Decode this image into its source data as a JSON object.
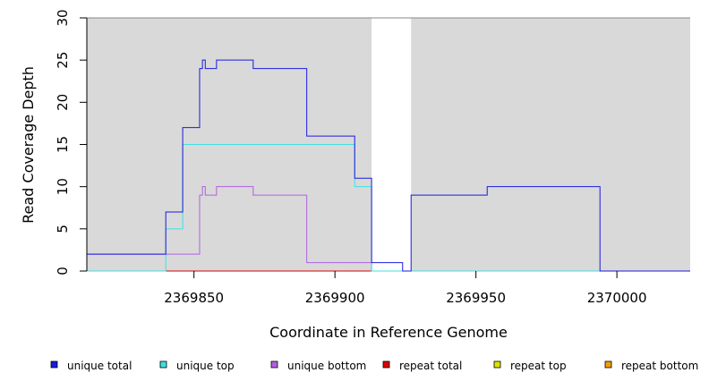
{
  "chart_data": {
    "type": "line",
    "step": true,
    "xlabel": "Coordinate in Reference Genome",
    "ylabel": "Read Coverage Depth",
    "xlim": [
      2369812,
      2370026
    ],
    "ylim": [
      0,
      30
    ],
    "x_ticks": [
      2369850,
      2369900,
      2369950,
      2370000
    ],
    "x_tick_labels": [
      "2369850",
      "2369900",
      "2369950",
      "2370000"
    ],
    "y_ticks": [
      0,
      5,
      10,
      15,
      20,
      25,
      30
    ],
    "y_tick_labels": [
      "0",
      "5",
      "10",
      "15",
      "20",
      "25",
      "30"
    ],
    "shaded_regions": [
      {
        "x0": 2369812,
        "x1": 2369913,
        "color": "#d9d9d9"
      },
      {
        "x0": 2369927,
        "x1": 2370026,
        "color": "#d9d9d9"
      }
    ],
    "legend_position": "bottom",
    "series": [
      {
        "name": "unique total",
        "color": "#1a1ae0",
        "points": [
          [
            2369812,
            2
          ],
          [
            2369840,
            2
          ],
          [
            2369840,
            7
          ],
          [
            2369846,
            7
          ],
          [
            2369846,
            17
          ],
          [
            2369852,
            17
          ],
          [
            2369852,
            24
          ],
          [
            2369853,
            24
          ],
          [
            2369853,
            25
          ],
          [
            2369854,
            25
          ],
          [
            2369854,
            24
          ],
          [
            2369858,
            24
          ],
          [
            2369858,
            25
          ],
          [
            2369871,
            25
          ],
          [
            2369871,
            24
          ],
          [
            2369890,
            24
          ],
          [
            2369890,
            16
          ],
          [
            2369907,
            16
          ],
          [
            2369907,
            11
          ],
          [
            2369913,
            11
          ],
          [
            2369913,
            1
          ],
          [
            2369924,
            1
          ],
          [
            2369924,
            0
          ],
          [
            2369927,
            0
          ],
          [
            2369927,
            9
          ],
          [
            2369954,
            9
          ],
          [
            2369954,
            10
          ],
          [
            2369994,
            10
          ],
          [
            2369994,
            0
          ],
          [
            2370026,
            0
          ]
        ]
      },
      {
        "name": "unique top",
        "color": "#40e0e0",
        "points": [
          [
            2369812,
            0
          ],
          [
            2369840,
            0
          ],
          [
            2369840,
            5
          ],
          [
            2369846,
            5
          ],
          [
            2369846,
            15
          ],
          [
            2369907,
            15
          ],
          [
            2369907,
            10
          ],
          [
            2369913,
            10
          ],
          [
            2369913,
            0
          ],
          [
            2370026,
            0
          ]
        ]
      },
      {
        "name": "unique bottom",
        "color": "#b060e0",
        "points": [
          [
            2369812,
            2
          ],
          [
            2369852,
            2
          ],
          [
            2369852,
            9
          ],
          [
            2369853,
            9
          ],
          [
            2369853,
            10
          ],
          [
            2369854,
            10
          ],
          [
            2369854,
            9
          ],
          [
            2369858,
            9
          ],
          [
            2369858,
            10
          ],
          [
            2369871,
            10
          ],
          [
            2369871,
            9
          ],
          [
            2369890,
            9
          ],
          [
            2369890,
            1
          ],
          [
            2369913,
            1
          ],
          [
            2369913,
            0
          ]
        ]
      },
      {
        "name": "repeat total",
        "color": "#e00000",
        "points": [
          [
            2369812,
            0
          ],
          [
            2369913,
            0
          ]
        ]
      },
      {
        "name": "repeat top",
        "color": "#e0e000",
        "points": [
          [
            2369812,
            0
          ],
          [
            2369913,
            0
          ]
        ]
      },
      {
        "name": "repeat bottom",
        "color": "#f0a000",
        "points": [
          [
            2369812,
            0
          ],
          [
            2369913,
            0
          ]
        ]
      }
    ]
  }
}
